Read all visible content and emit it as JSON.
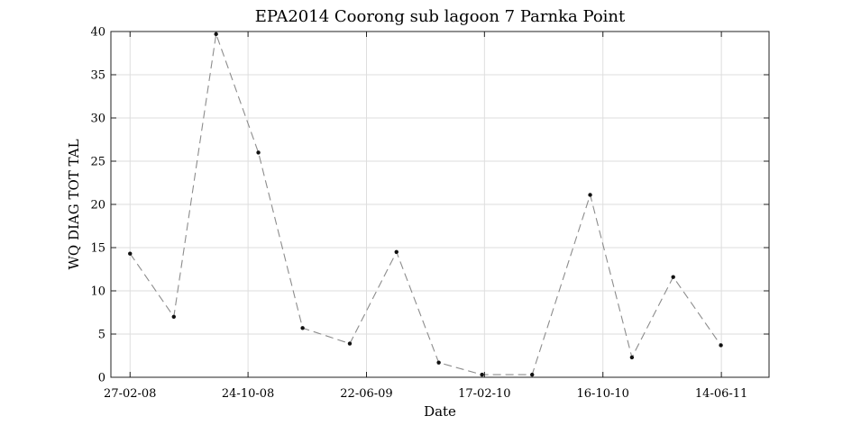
{
  "chart_data": {
    "type": "line",
    "title": "EPA2014 Coorong sub lagoon 7 Parnka Point",
    "xlabel": "Date",
    "ylabel": "WQ DIAG TOT TAL",
    "xlim": [
      "2008-01-19",
      "2011-09-19"
    ],
    "ylim": [
      0,
      40
    ],
    "x_ticks": [
      "2008-02-27",
      "2008-10-24",
      "2009-06-22",
      "2010-02-17",
      "2010-10-16",
      "2011-06-14"
    ],
    "x_tick_labels": [
      "27-02-08",
      "24-10-08",
      "22-06-09",
      "17-02-10",
      "16-10-10",
      "14-06-11"
    ],
    "y_ticks": [
      0,
      5,
      10,
      15,
      20,
      25,
      30,
      35,
      40
    ],
    "y_tick_labels": [
      "0",
      "5",
      "10",
      "15",
      "20",
      "25",
      "30",
      "35",
      "40"
    ],
    "grid": true,
    "series": [
      {
        "x": [
          "2008-02-27",
          "2008-05-26",
          "2008-08-20",
          "2008-11-14",
          "2009-02-12",
          "2009-05-19",
          "2009-08-22",
          "2009-11-16",
          "2010-02-12",
          "2010-05-25",
          "2010-09-20",
          "2010-12-14",
          "2011-03-08",
          "2011-06-13"
        ],
        "y": [
          14.3,
          7.0,
          39.7,
          26.0,
          5.7,
          3.9,
          14.5,
          1.7,
          0.3,
          0.3,
          21.1,
          2.3,
          11.6,
          3.7
        ]
      }
    ]
  }
}
